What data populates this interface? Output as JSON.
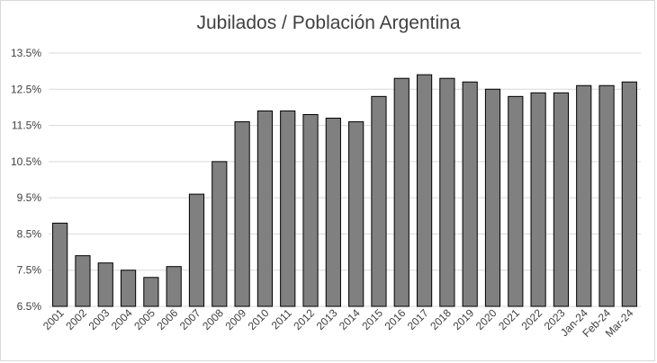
{
  "chart_data": {
    "type": "bar",
    "title": "Jubilados / Población Argentina",
    "xlabel": "",
    "ylabel": "",
    "categories": [
      "2001",
      "2002",
      "2003",
      "2004",
      "2005",
      "2006",
      "2007",
      "2008",
      "2009",
      "2010",
      "2011",
      "2012",
      "2013",
      "2014",
      "2015",
      "2016",
      "2017",
      "2018",
      "2019",
      "2020",
      "2021",
      "2022",
      "2023",
      "Jan-24",
      "Feb-24",
      "Mar-24"
    ],
    "values": [
      8.8,
      7.9,
      7.7,
      7.5,
      7.3,
      7.6,
      9.6,
      10.5,
      11.6,
      11.9,
      11.9,
      11.8,
      11.7,
      11.6,
      12.3,
      12.8,
      12.9,
      12.8,
      12.7,
      12.5,
      12.3,
      12.4,
      12.4,
      12.6,
      12.6,
      12.7
    ],
    "ylim": [
      6.5,
      13.5
    ],
    "yticks": [
      "6.5%",
      "7.5%",
      "8.5%",
      "9.5%",
      "10.5%",
      "11.5%",
      "12.5%",
      "13.5%"
    ],
    "ytick_values": [
      6.5,
      7.5,
      8.5,
      9.5,
      10.5,
      11.5,
      12.5,
      13.5
    ],
    "grid": true,
    "legend": "none",
    "colors": {
      "bar_fill": "#808080",
      "bar_stroke": "#000000",
      "grid": "#d9d9d9",
      "text": "#404040"
    }
  }
}
